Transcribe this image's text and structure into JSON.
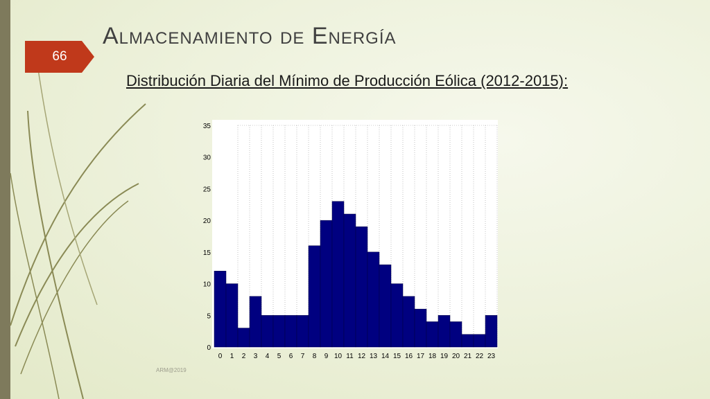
{
  "slide": {
    "number": "66",
    "title": "Almacenamiento de Energía",
    "subtitle": "Distribución Diaria del Mínimo de Producción Eólica (2012-2015):",
    "footer": "ARM@2019"
  },
  "colors": {
    "bar_fill": "#000080",
    "slide_number_bg": "#c0391b",
    "left_bar": "#7e7a5c"
  },
  "chart_data": {
    "type": "bar",
    "categories": [
      "0",
      "1",
      "2",
      "3",
      "4",
      "5",
      "6",
      "7",
      "8",
      "9",
      "10",
      "11",
      "12",
      "13",
      "14",
      "15",
      "16",
      "17",
      "18",
      "19",
      "20",
      "21",
      "22",
      "23"
    ],
    "values": [
      12,
      10,
      3,
      8,
      5,
      5,
      5,
      5,
      16,
      20,
      23,
      21,
      19,
      15,
      13,
      10,
      8,
      6,
      4,
      5,
      4,
      2,
      2,
      5
    ],
    "ylim": [
      0,
      35
    ],
    "yticks": [
      0,
      5,
      10,
      15,
      20,
      25,
      30,
      35
    ],
    "title": "",
    "xlabel": "",
    "ylabel": "",
    "grid": "vertical"
  }
}
